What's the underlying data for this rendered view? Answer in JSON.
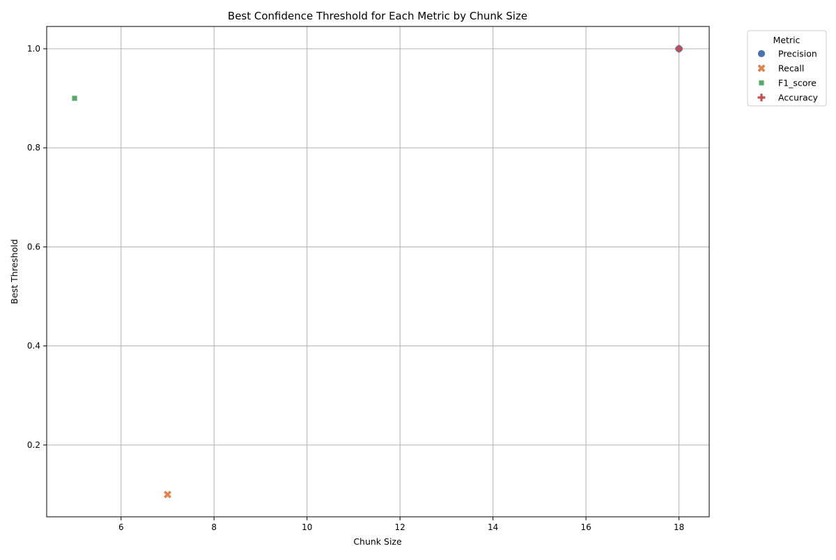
{
  "chart_data": {
    "type": "scatter",
    "title": "Best Confidence Threshold for Each Metric by Chunk Size",
    "xlabel": "Chunk Size",
    "ylabel": "Best Threshold",
    "xlim": [
      4.4,
      18.65
    ],
    "ylim": [
      0.055,
      1.045
    ],
    "xticks": [
      6,
      8,
      10,
      12,
      14,
      16,
      18
    ],
    "yticks": [
      0.2,
      0.4,
      0.6,
      0.8,
      1.0
    ],
    "xtick_labels": [
      "6",
      "8",
      "10",
      "12",
      "14",
      "16",
      "18"
    ],
    "ytick_labels": [
      "0.2",
      "0.4",
      "0.6",
      "0.8",
      "1.0"
    ],
    "grid": true,
    "legend": {
      "title": "Metric",
      "placement": "outside-top-right"
    },
    "series": [
      {
        "name": "Precision",
        "marker": "circle",
        "color": "#4c72b0",
        "points": [
          {
            "x": 18,
            "y": 1.0
          }
        ]
      },
      {
        "name": "Recall",
        "marker": "x",
        "color": "#dd8452",
        "points": [
          {
            "x": 7,
            "y": 0.1
          }
        ]
      },
      {
        "name": "F1_score",
        "marker": "square",
        "color": "#55a868",
        "points": [
          {
            "x": 5,
            "y": 0.9
          }
        ]
      },
      {
        "name": "Accuracy",
        "marker": "plus",
        "color": "#c44e52",
        "points": [
          {
            "x": 18,
            "y": 1.0
          }
        ]
      }
    ]
  }
}
